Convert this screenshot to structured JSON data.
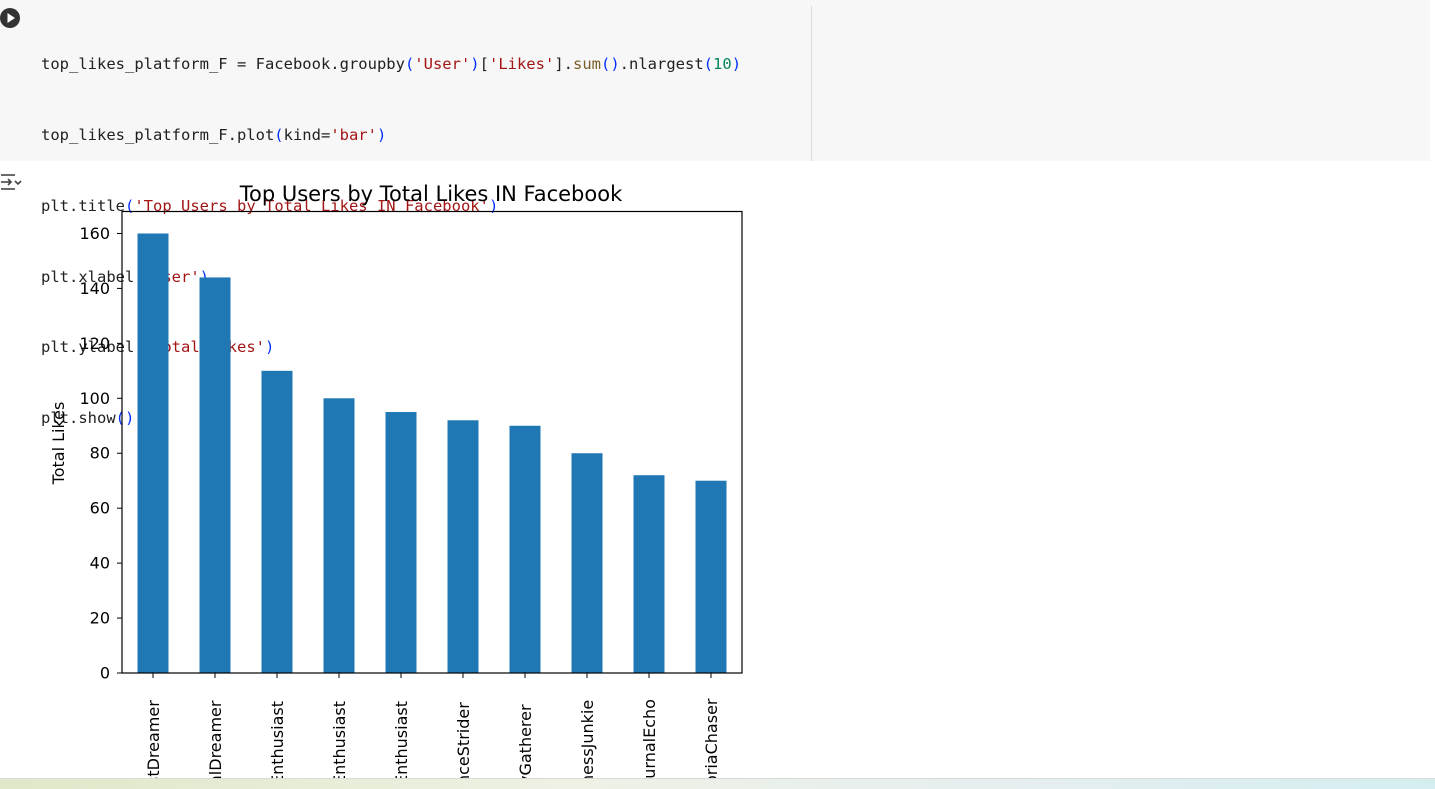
{
  "code_cell": {
    "lines": [
      "top_likes_platform_F = Facebook.groupby('User')['Likes'].sum().nlargest(10)",
      "top_likes_platform_F.plot(kind='bar')",
      "plt.title('Top Users by Total Likes IN Facebook')",
      "plt.xlabel('User')",
      "plt.ylabel('Total Likes')",
      "plt.show()"
    ]
  },
  "icons": {
    "run": "play-circle-icon",
    "output_toggle": "output-collapse-icon"
  },
  "colors": {
    "bar": "#1f77b4",
    "code_background": "#f7f7f7",
    "string": "#a31515",
    "number": "#098658"
  },
  "chart_data": {
    "type": "bar",
    "title": "Top Users by Total Likes IN Facebook",
    "xlabel": "",
    "ylabel": "Total Likes",
    "categories": [
      "stDreamer",
      "alDreamer",
      "Enthusiast",
      "Enthusiast",
      "Enthusiast",
      "nceStrider",
      "yGatherer",
      "nessJunkie",
      "turnalEcho",
      "oriaChaser"
    ],
    "values": [
      160,
      144,
      110,
      100,
      95,
      92,
      90,
      80,
      72,
      70
    ],
    "ylim": [
      0,
      168
    ],
    "yticks": [
      0,
      20,
      40,
      60,
      80,
      100,
      120,
      140,
      160
    ],
    "grid": false,
    "legend": "none"
  }
}
